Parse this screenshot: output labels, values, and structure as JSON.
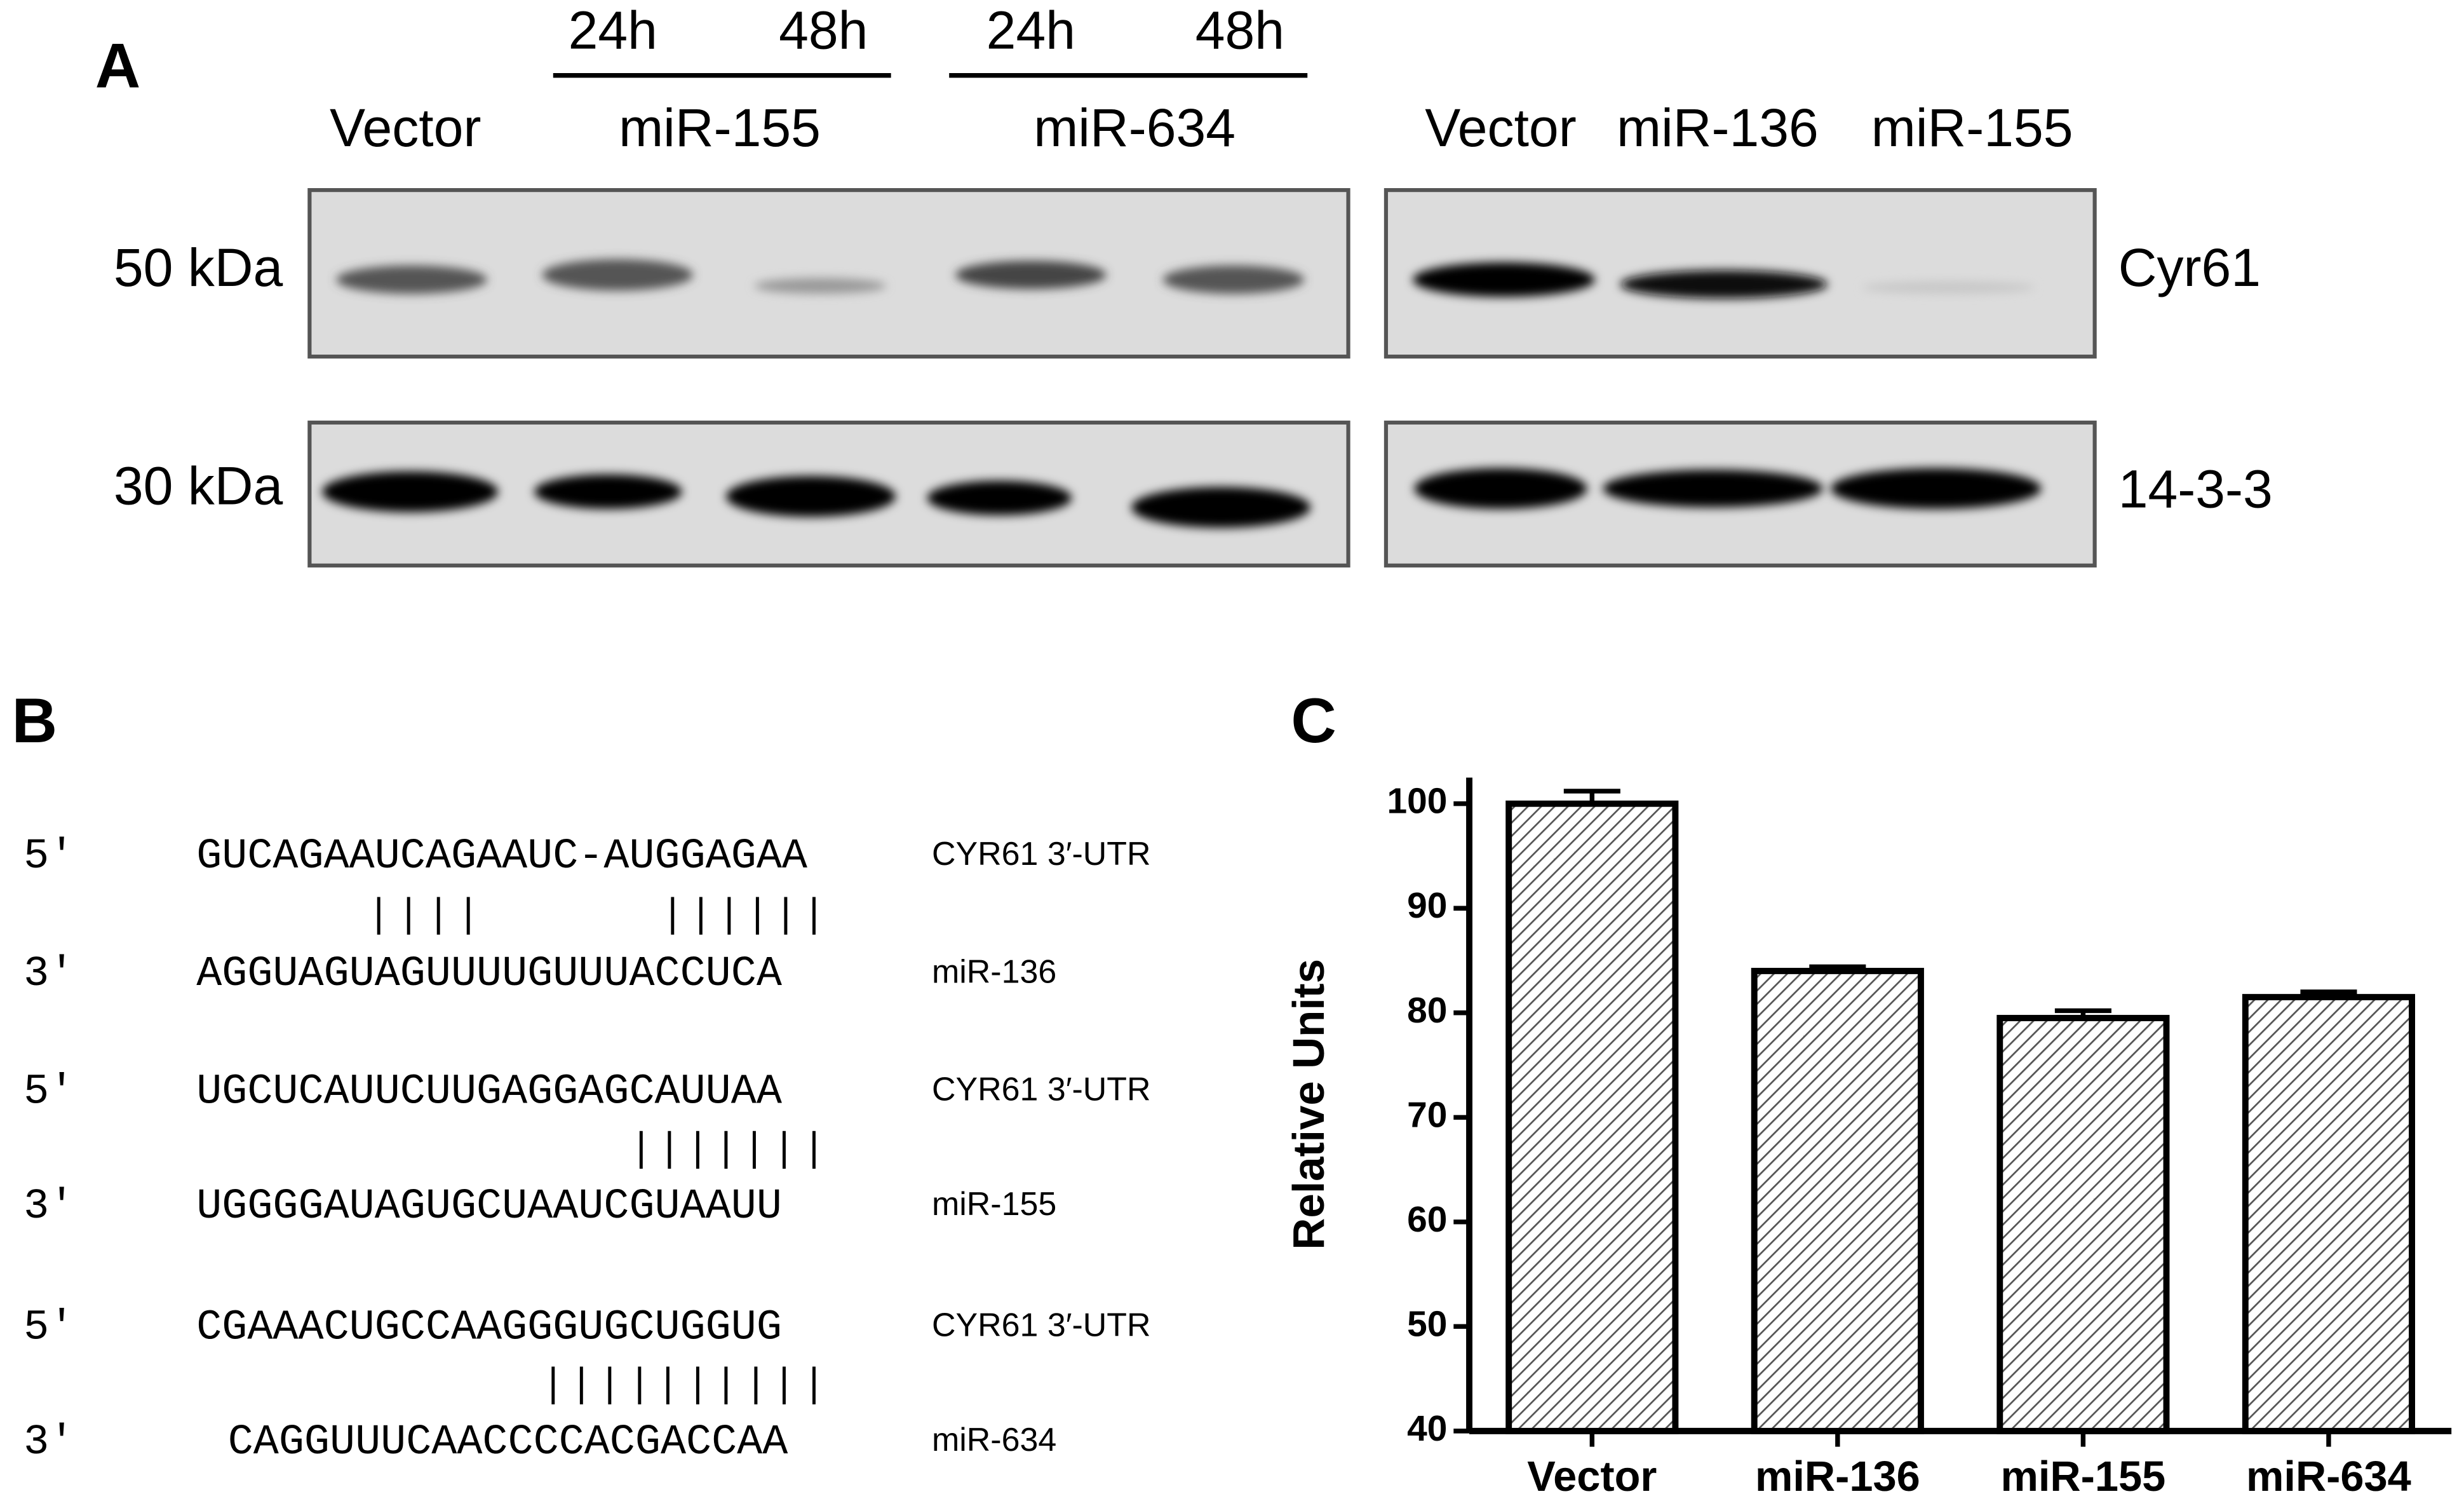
{
  "panel_a": {
    "label": "A",
    "time_labels": [
      "24h",
      "48h",
      "24h",
      "48h"
    ],
    "left_lanes": [
      "Vector",
      "miR-155",
      "miR-634"
    ],
    "right_lanes": [
      "Vector",
      "miR-136",
      "miR-155"
    ],
    "markers": [
      "50 kDa",
      "30 kDa"
    ],
    "proteins": [
      "Cyr61",
      "14-3-3"
    ]
  },
  "panel_b": {
    "label": "B",
    "pairs": [
      {
        "top_end": "5'",
        "top_seq": "GUCAGAAUCAGAAUC-AUGGAGAA",
        "top_name": "CYR61 3′-UTR",
        "bottom_end": "3'",
        "bottom_seq": "AGGUAGUAGUUUUGUUUACCUCA",
        "bottom_name": "miR-136"
      },
      {
        "top_end": "5'",
        "top_seq": "UGCUCAUUCUUGAGGAGCAUUAA",
        "top_name": "CYR61 3′-UTR",
        "bottom_end": "3'",
        "bottom_seq": "UGGGGAUAGUGCUAAUCGUAAUU",
        "bottom_name": "miR-155"
      },
      {
        "top_end": "5'",
        "top_seq": "CGAAACUGCCAAGGGUGCUGGUG",
        "top_name": "CYR61 3′-UTR",
        "bottom_end": "3'",
        "bottom_seq": "CAGGUUUCAACCCCACGACCAA",
        "bottom_name": "miR-634"
      }
    ]
  },
  "chart_data": {
    "type": "bar",
    "panel_label": "C",
    "y_label": "Relative Units",
    "categories": [
      "Vector",
      "miR-136",
      "miR-155",
      "miR-634"
    ],
    "values": [
      100,
      84,
      79.5,
      81.5
    ],
    "errors": [
      1.2,
      0.4,
      0.7,
      0.5
    ],
    "ylim": [
      40,
      102.5
    ],
    "yticks": [
      40,
      50,
      60,
      70,
      80,
      90,
      100
    ],
    "color": "#000000"
  }
}
